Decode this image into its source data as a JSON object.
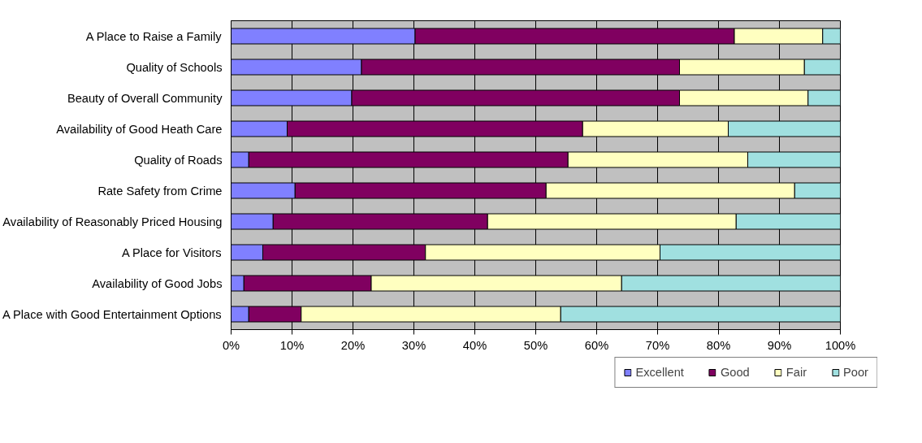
{
  "chart_data": {
    "type": "bar",
    "orientation": "horizontal",
    "stacked": true,
    "categories": [
      "A Place to Raise a Family",
      "Quality of Schools",
      "Beauty of Overall Community",
      "Availability of Good Heath Care",
      "Quality of Roads",
      "Rate Safety from Crime",
      "Availability of Reasonably Priced Housing",
      "A Place for Visitors",
      "Availability of Good Jobs",
      "A Place with Good Entertainment Options"
    ],
    "series": [
      {
        "name": "Excellent",
        "color": "#8080ff",
        "values": [
          30.2,
          21.4,
          19.8,
          9.2,
          2.9,
          10.5,
          6.9,
          5.2,
          2.1,
          2.9
        ]
      },
      {
        "name": "Good",
        "color": "#800060",
        "values": [
          52.4,
          52.2,
          53.8,
          48.5,
          52.4,
          41.2,
          35.2,
          26.7,
          20.9,
          8.6
        ]
      },
      {
        "name": "Fair",
        "color": "#ffffc0",
        "values": [
          14.5,
          20.5,
          21.1,
          23.9,
          29.5,
          40.8,
          40.8,
          38.5,
          41.1,
          42.6
        ]
      },
      {
        "name": "Poor",
        "color": "#a0e0e0",
        "values": [
          2.9,
          5.9,
          5.3,
          18.4,
          15.2,
          7.5,
          17.1,
          29.6,
          35.9,
          45.9
        ]
      }
    ],
    "xlim": [
      0,
      100
    ],
    "xticks": [
      {
        "value": 0,
        "label": "0%"
      },
      {
        "value": 10,
        "label": "10%"
      },
      {
        "value": 20,
        "label": "20%"
      },
      {
        "value": 30,
        "label": "30%"
      },
      {
        "value": 40,
        "label": "40%"
      },
      {
        "value": 50,
        "label": "50%"
      },
      {
        "value": 60,
        "label": "60%"
      },
      {
        "value": 70,
        "label": "70%"
      },
      {
        "value": 80,
        "label": "80%"
      },
      {
        "value": 90,
        "label": "90%"
      },
      {
        "value": 100,
        "label": "100%"
      }
    ],
    "grid": "x",
    "legend": "bottom"
  }
}
